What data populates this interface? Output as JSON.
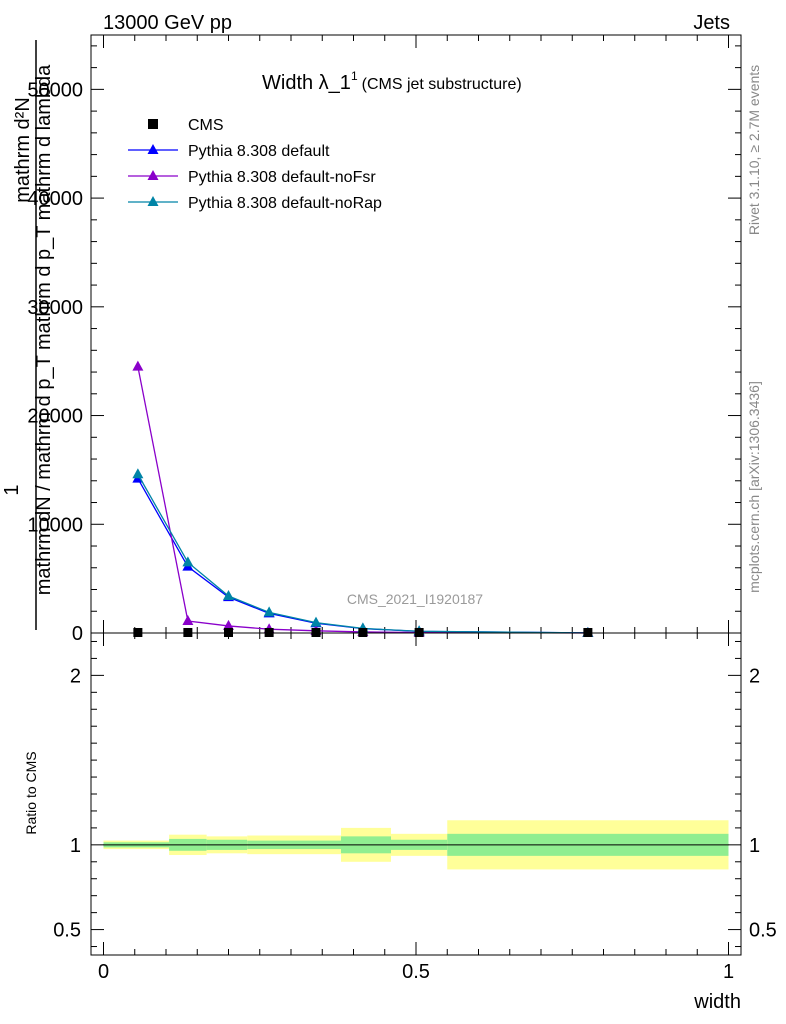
{
  "header": {
    "left": "13000 GeV pp",
    "right": "Jets"
  },
  "side_text": {
    "rivet": "Rivet 3.1.10, ≥ 2.7M events",
    "mcplots": "mcplots.cern.ch [arXiv:1306.3436]"
  },
  "watermark": "CMS_2021_I1920187",
  "chart_data": [
    {
      "type": "line",
      "title": "Width λ_1",
      "title_sup": "1",
      "subtitle": "(CMS jet substructure)",
      "ylabel_top": "1",
      "ylabel_numerator": "mathrm d²N",
      "ylabel_denominator": "mathrm dN / mathrm d p_T mathrm d p_T mathrm d lambda",
      "xlim": [
        -0.02,
        1.02
      ],
      "ylim": [
        0,
        55000
      ],
      "yticks": [
        0,
        10000,
        20000,
        30000,
        40000,
        50000
      ],
      "ytick_labels": [
        "0",
        "10000",
        "20000",
        "30000",
        "40000",
        "50000"
      ],
      "legend_position": "top-left",
      "series": [
        {
          "name": "CMS",
          "color": "#000000",
          "marker": "square",
          "x": [
            0.055,
            0.135,
            0.2,
            0.265,
            0.34,
            0.415,
            0.505,
            0.775
          ],
          "y": [
            0,
            0,
            0,
            0,
            0,
            0,
            0,
            0
          ]
        },
        {
          "name": "Pythia 8.308 default",
          "color": "#0000ff",
          "marker": "triangle",
          "x": [
            0.055,
            0.135,
            0.2,
            0.265,
            0.34,
            0.415,
            0.505,
            0.775
          ],
          "y": [
            14200,
            6100,
            3300,
            1800,
            900,
            400,
            150,
            10
          ]
        },
        {
          "name": "Pythia 8.308 default-noFsr",
          "color": "#8a00ca",
          "marker": "triangle",
          "x": [
            0.055,
            0.135,
            0.2,
            0.265,
            0.34,
            0.415,
            0.505,
            0.775
          ],
          "y": [
            24500,
            1100,
            650,
            350,
            200,
            100,
            40,
            5
          ]
        },
        {
          "name": "Pythia 8.308 default-noRap",
          "color": "#0084a6",
          "marker": "triangle",
          "x": [
            0.055,
            0.135,
            0.2,
            0.265,
            0.34,
            0.415,
            0.505,
            0.775
          ],
          "y": [
            14600,
            6500,
            3400,
            1900,
            950,
            420,
            160,
            12
          ]
        }
      ]
    },
    {
      "type": "band",
      "ylabel": "Ratio to CMS",
      "xlabel": "width",
      "xlim": [
        -0.02,
        1.02
      ],
      "ylim": [
        0.35,
        2.25
      ],
      "yticks": [
        0.5,
        1,
        2
      ],
      "ytick_labels": [
        "0.5",
        "1",
        "2"
      ],
      "xticks": [
        0,
        0.5,
        1
      ],
      "xtick_labels": [
        "0",
        "0.5",
        "1"
      ],
      "reference_line": 1,
      "stat_color": "#90ee90",
      "syst_color": "#ffff99",
      "bins": [
        {
          "x0": 0.0,
          "x1": 0.105,
          "stat_lo": 0.985,
          "stat_hi": 1.015,
          "tot_lo": 0.975,
          "tot_hi": 1.025
        },
        {
          "x0": 0.105,
          "x1": 0.165,
          "stat_lo": 0.965,
          "stat_hi": 1.035,
          "tot_lo": 0.94,
          "tot_hi": 1.06
        },
        {
          "x0": 0.165,
          "x1": 0.23,
          "stat_lo": 0.97,
          "stat_hi": 1.03,
          "tot_lo": 0.95,
          "tot_hi": 1.05
        },
        {
          "x0": 0.23,
          "x1": 0.3,
          "stat_lo": 0.975,
          "stat_hi": 1.025,
          "tot_lo": 0.945,
          "tot_hi": 1.055
        },
        {
          "x0": 0.3,
          "x1": 0.38,
          "stat_lo": 0.975,
          "stat_hi": 1.025,
          "tot_lo": 0.945,
          "tot_hi": 1.055
        },
        {
          "x0": 0.38,
          "x1": 0.46,
          "stat_lo": 0.95,
          "stat_hi": 1.05,
          "tot_lo": 0.9,
          "tot_hi": 1.1
        },
        {
          "x0": 0.46,
          "x1": 0.55,
          "stat_lo": 0.97,
          "stat_hi": 1.03,
          "tot_lo": 0.935,
          "tot_hi": 1.065
        },
        {
          "x0": 0.55,
          "x1": 1.0,
          "stat_lo": 0.935,
          "stat_hi": 1.065,
          "tot_lo": 0.855,
          "tot_hi": 1.145
        }
      ]
    }
  ]
}
